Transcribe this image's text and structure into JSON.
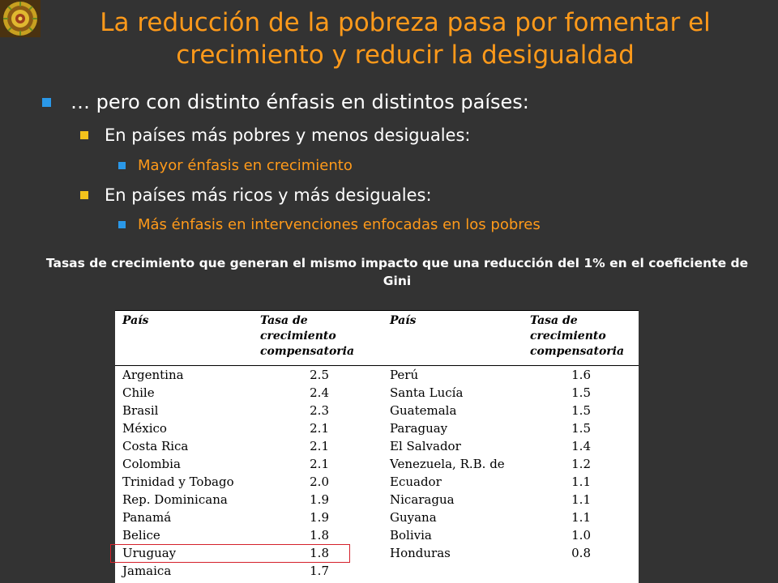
{
  "title": "La reducción de la pobreza pasa por fomentar el crecimiento y reducir la desigualdad",
  "bullets": {
    "main": "… pero con distinto énfasis en distintos países:",
    "sub1": "En países más pobres y menos desiguales:",
    "sub1_detail": "Mayor énfasis en crecimiento",
    "sub2": "En países más ricos y más desiguales:",
    "sub2_detail": "Más énfasis en intervenciones enfocadas en los pobres"
  },
  "caption": "Tasas de crecimiento que generan el mismo impacto que una reducción del 1% en el coeficiente de Gini",
  "table": {
    "headers": {
      "col1": "País",
      "col2_line1": "Tasa de",
      "col2_line2": "crecimiento",
      "col2_line3": "compensatoria",
      "col3": "País",
      "col4_line1": "Tasa de",
      "col4_line2": "crecimiento",
      "col4_line3": "compensatoria"
    },
    "rows": [
      {
        "country_a": "Argentina",
        "rate_a": "2.5",
        "country_b": "Perú",
        "rate_b": "1.6"
      },
      {
        "country_a": "Chile",
        "rate_a": "2.4",
        "country_b": "Santa Lucía",
        "rate_b": "1.5"
      },
      {
        "country_a": "Brasil",
        "rate_a": "2.3",
        "country_b": "Guatemala",
        "rate_b": "1.5"
      },
      {
        "country_a": "México",
        "rate_a": "2.1",
        "country_b": "Paraguay",
        "rate_b": "1.5"
      },
      {
        "country_a": "Costa Rica",
        "rate_a": "2.1",
        "country_b": "El Salvador",
        "rate_b": "1.4"
      },
      {
        "country_a": "Colombia",
        "rate_a": "2.1",
        "country_b": "Venezuela, R.B. de",
        "rate_b": "1.2"
      },
      {
        "country_a": "Trinidad y Tobago",
        "rate_a": "2.0",
        "country_b": "Ecuador",
        "rate_b": "1.1"
      },
      {
        "country_a": "Rep. Dominicana",
        "rate_a": "1.9",
        "country_b": "Nicaragua",
        "rate_b": "1.1"
      },
      {
        "country_a": "Panamá",
        "rate_a": "1.9",
        "country_b": "Guyana",
        "rate_b": "1.1"
      },
      {
        "country_a": "Belice",
        "rate_a": "1.8",
        "country_b": "Bolivia",
        "rate_b": "1.0"
      },
      {
        "country_a": "Uruguay",
        "rate_a": "1.8",
        "country_b": "Honduras",
        "rate_b": "0.8"
      },
      {
        "country_a": "Jamaica",
        "rate_a": "1.7",
        "country_b": "",
        "rate_b": ""
      }
    ]
  },
  "colors": {
    "background": "#333333",
    "title": "#ff9a1a",
    "bullet_blue": "#2a98e8",
    "bullet_yellow": "#f2c21c",
    "highlight_border": "#d4202a"
  }
}
